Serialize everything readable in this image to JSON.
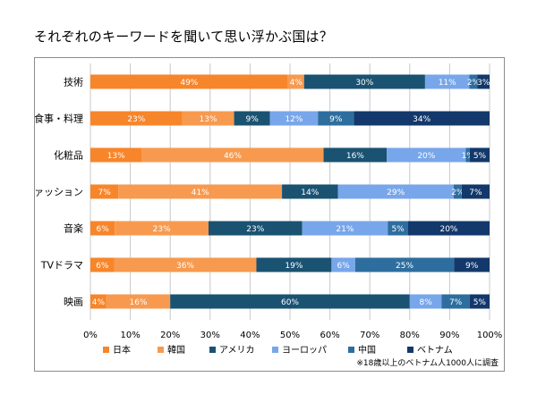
{
  "title": "それぞれのキーワードを聞いて思い浮かぶ国は？",
  "chart_data": {
    "type": "bar",
    "orientation": "horizontal",
    "stacked": "percent",
    "categories": [
      "技術",
      "食事・料理",
      "化粧品",
      "ファッション",
      "音楽",
      "TVドラマ",
      "映画"
    ],
    "series": [
      {
        "name": "日本",
        "color": "#F7852A",
        "values": [
          49,
          23,
          13,
          7,
          6,
          6,
          4
        ],
        "labels": [
          "49%",
          "23%",
          "13%",
          "7%",
          "6%",
          "6%",
          "4%"
        ]
      },
      {
        "name": "韓国",
        "color": "#F79A4F",
        "values": [
          4,
          13,
          46,
          41,
          23,
          36,
          16
        ],
        "labels": [
          "4%",
          "13%",
          "46%",
          "41%",
          "23%",
          "36%",
          "16%"
        ]
      },
      {
        "name": "アメリカ",
        "color": "#1A5272",
        "values": [
          30,
          9,
          16,
          14,
          23,
          19,
          60
        ],
        "labels": [
          "30%",
          "9%",
          "16%",
          "14%",
          "23%",
          "19%",
          "60%"
        ]
      },
      {
        "name": "ヨーロッパ",
        "color": "#78A6EA",
        "values": [
          11,
          12,
          20,
          29,
          21,
          6,
          8
        ],
        "labels": [
          "11%",
          "12%",
          "20%",
          "29%",
          "21%",
          "6%",
          "8%"
        ]
      },
      {
        "name": "中国",
        "color": "#2D6E9F",
        "values": [
          2,
          9,
          1,
          2,
          5,
          25,
          7
        ],
        "labels": [
          "2%",
          "9%",
          "1%",
          "2%",
          "5%",
          "25%",
          "7%"
        ]
      },
      {
        "name": "ベトナム",
        "color": "#13386B",
        "values": [
          3,
          34,
          5,
          7,
          20,
          9,
          5
        ],
        "labels": [
          "3%",
          "34%",
          "5%",
          "7%",
          "20%",
          "9%",
          "5%"
        ]
      }
    ],
    "xlim": [
      0,
      100
    ],
    "xticks": [
      "0%",
      "10%",
      "20%",
      "30%",
      "40%",
      "50%",
      "60%",
      "70%",
      "80%",
      "90%",
      "100%"
    ],
    "grid": "vertical",
    "legend": "bottom",
    "note": "※18歳以上のベトナム人1000人に調査"
  }
}
